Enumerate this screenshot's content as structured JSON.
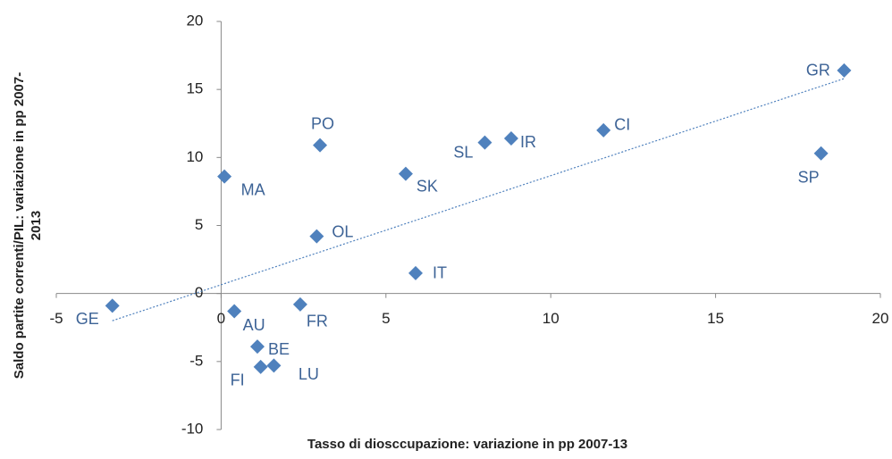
{
  "chart_data": {
    "type": "scatter",
    "x_label": "Tasso di diosccupazione: variazione in pp 2007-13",
    "y_label": "Saldo partite correnti/PIL: variazione in pp 2007-2013",
    "labels": [
      "GE",
      "MA",
      "AU",
      "BE",
      "FI",
      "LU",
      "FR",
      "PO",
      "OL",
      "SK",
      "IT",
      "SL",
      "IR",
      "CI",
      "SP",
      "GR"
    ],
    "x": [
      -3.3,
      0.1,
      0.4,
      1.1,
      1.2,
      1.6,
      2.4,
      3.0,
      2.9,
      5.6,
      5.9,
      8.0,
      8.8,
      11.6,
      18.2,
      18.9
    ],
    "values": [
      -0.9,
      8.6,
      -1.3,
      -3.9,
      -5.4,
      -5.3,
      -0.8,
      10.9,
      4.2,
      8.8,
      1.5,
      11.1,
      11.4,
      12.0,
      10.3,
      16.4
    ],
    "color": "#4f81bd",
    "trendline": {
      "x": [
        -3.3,
        18.9
      ],
      "y": [
        -2.0,
        15.8
      ]
    },
    "xlim": [
      -5,
      20
    ],
    "xticks": [
      -5,
      0,
      5,
      10,
      15,
      20
    ],
    "ylim": [
      -10,
      20
    ],
    "yticks": [
      -10,
      -5,
      0,
      5,
      10,
      15,
      20
    ]
  }
}
